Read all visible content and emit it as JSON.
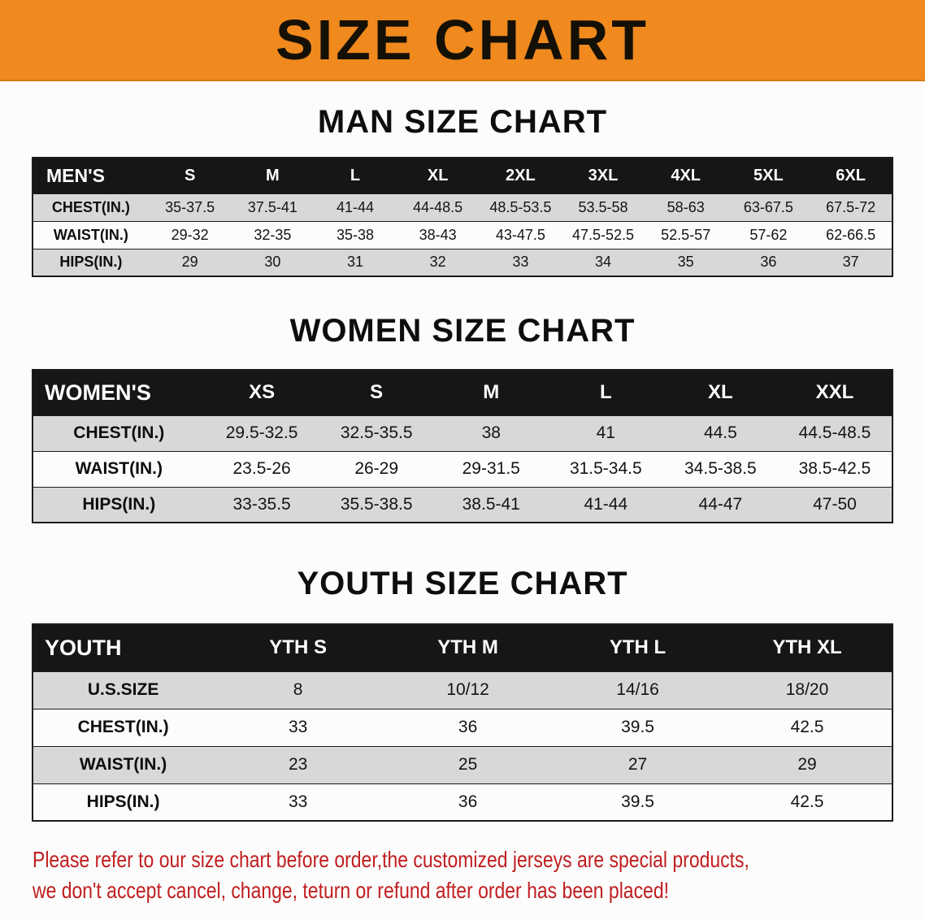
{
  "banner": {
    "title": "SIZE CHART"
  },
  "sections": {
    "men": {
      "heading": "MAN SIZE CHART",
      "table": {
        "header": [
          "MEN'S",
          "S",
          "M",
          "L",
          "XL",
          "2XL",
          "3XL",
          "4XL",
          "5XL",
          "6XL"
        ],
        "rows": [
          {
            "label": "CHEST(IN.)",
            "values": [
              "35-37.5",
              "37.5-41",
              "41-44",
              "44-48.5",
              "48.5-53.5",
              "53.5-58",
              "58-63",
              "63-67.5",
              "67.5-72"
            ]
          },
          {
            "label": "WAIST(IN.)",
            "values": [
              "29-32",
              "32-35",
              "35-38",
              "38-43",
              "43-47.5",
              "47.5-52.5",
              "52.5-57",
              "57-62",
              "62-66.5"
            ]
          },
          {
            "label": "HIPS(IN.)",
            "values": [
              "29",
              "30",
              "31",
              "32",
              "33",
              "34",
              "35",
              "36",
              "37"
            ]
          }
        ]
      }
    },
    "women": {
      "heading": "WOMEN SIZE CHART",
      "table": {
        "header": [
          "WOMEN'S",
          "XS",
          "S",
          "M",
          "L",
          "XL",
          "XXL"
        ],
        "rows": [
          {
            "label": "CHEST(IN.)",
            "values": [
              "29.5-32.5",
              "32.5-35.5",
              "38",
              "41",
              "44.5",
              "44.5-48.5"
            ]
          },
          {
            "label": "WAIST(IN.)",
            "values": [
              "23.5-26",
              "26-29",
              "29-31.5",
              "31.5-34.5",
              "34.5-38.5",
              "38.5-42.5"
            ]
          },
          {
            "label": "HIPS(IN.)",
            "values": [
              "33-35.5",
              "35.5-38.5",
              "38.5-41",
              "41-44",
              "44-47",
              "47-50"
            ]
          }
        ]
      }
    },
    "youth": {
      "heading": "YOUTH SIZE CHART",
      "table": {
        "header": [
          "YOUTH",
          "YTH S",
          "YTH M",
          "YTH L",
          "YTH XL"
        ],
        "rows": [
          {
            "label": "U.S.SIZE",
            "values": [
              "8",
              "10/12",
              "14/16",
              "18/20"
            ]
          },
          {
            "label": "CHEST(IN.)",
            "values": [
              "33",
              "36",
              "39.5",
              "42.5"
            ]
          },
          {
            "label": "WAIST(IN.)",
            "values": [
              "23",
              "25",
              "27",
              "29"
            ]
          },
          {
            "label": "HIPS(IN.)",
            "values": [
              "33",
              "36",
              "39.5",
              "42.5"
            ]
          }
        ]
      }
    }
  },
  "disclaimer": {
    "line1": "Please refer to our size chart before order,the customized jerseys are special products,",
    "line2": "we don't accept cancel, change, teturn or refund after order has been placed!"
  },
  "colors": {
    "banner_bg": "#F0891E",
    "header_bg": "#161616",
    "row_shade": "#D8D8D8",
    "disclaimer_text": "#C01E20"
  }
}
